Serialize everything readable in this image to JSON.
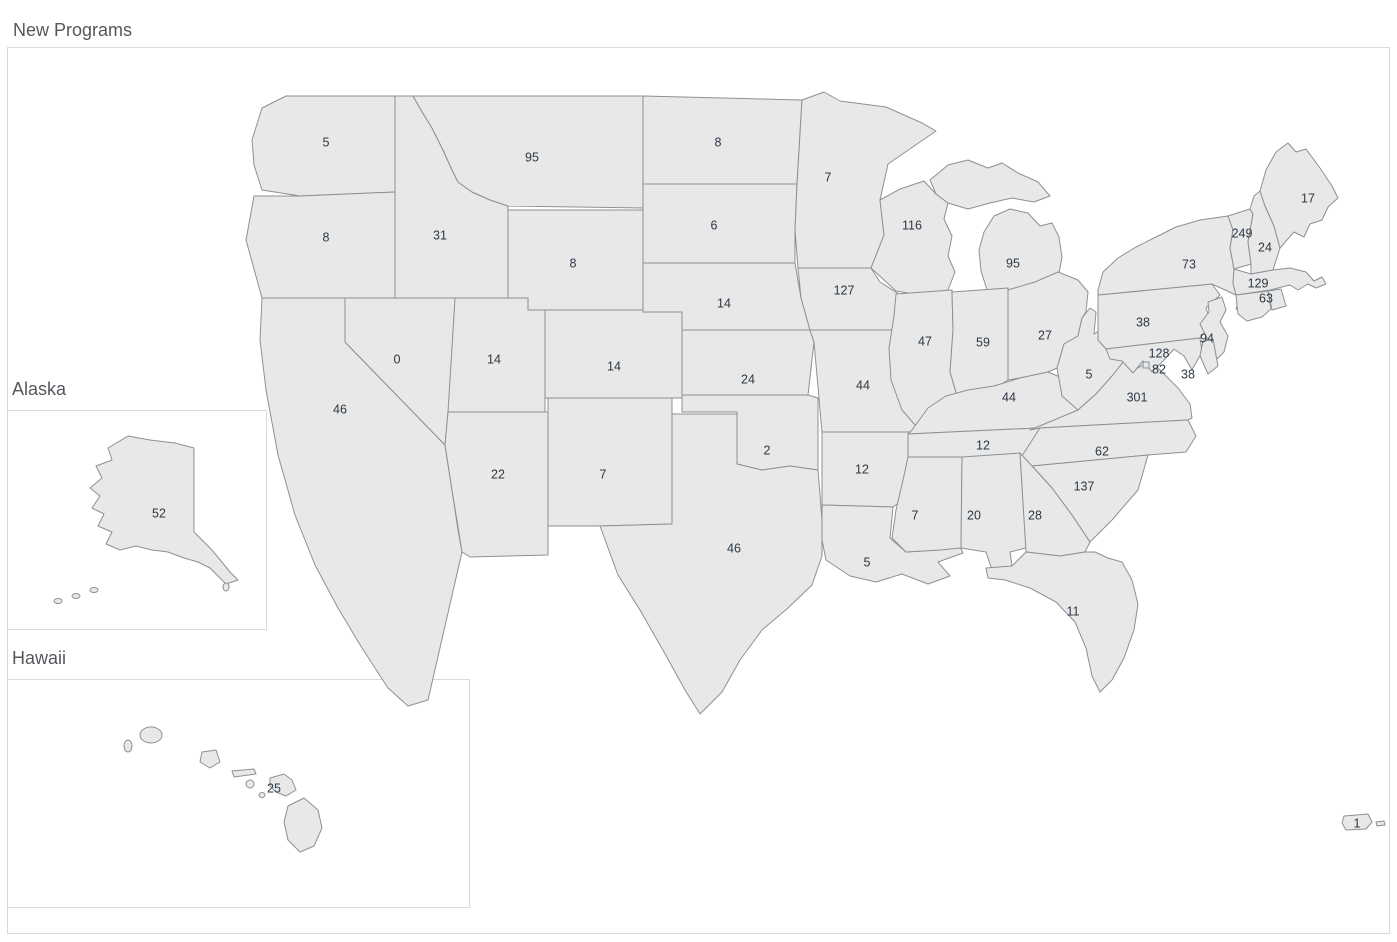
{
  "title": "New Programs",
  "insets": {
    "alaska_label": "Alaska",
    "hawaii_label": "Hawaii"
  },
  "chart_data": {
    "type": "choropleth",
    "title": "New Programs",
    "measure": "New Programs",
    "geography": "United States by state",
    "legend_visible": false,
    "color_scale": {
      "type": "sequential",
      "low_color": "#ddefe7",
      "high_color": "#2e527c",
      "domain": [
        0,
        301
      ]
    },
    "states": [
      {
        "id": "WA",
        "name": "Washington",
        "value": 5,
        "color": "#d4ebe2",
        "label": [
          326,
          142
        ]
      },
      {
        "id": "OR",
        "name": "Oregon",
        "value": 8,
        "color": "#cfe9df",
        "label": [
          326,
          237
        ]
      },
      {
        "id": "CA",
        "name": "California",
        "value": 46,
        "color": "#97cdca",
        "label": [
          340,
          409
        ]
      },
      {
        "id": "NV",
        "name": "Nevada",
        "value": 0,
        "color": "#ddefe7",
        "label": [
          397,
          359
        ]
      },
      {
        "id": "ID",
        "name": "Idaho",
        "value": 31,
        "color": "#aed9d0",
        "label": [
          440,
          235
        ]
      },
      {
        "id": "MT",
        "name": "Montana",
        "value": 95,
        "color": "#5faabf",
        "label": [
          532,
          157
        ]
      },
      {
        "id": "WY",
        "name": "Wyoming",
        "value": 8,
        "color": "#cfe9df",
        "label": [
          573,
          263
        ]
      },
      {
        "id": "UT",
        "name": "Utah",
        "value": 14,
        "color": "#c5e4d9",
        "label": [
          494,
          359
        ]
      },
      {
        "id": "CO",
        "name": "Colorado",
        "value": 14,
        "color": "#c5e4d9",
        "label": [
          614,
          366
        ]
      },
      {
        "id": "AZ",
        "name": "Arizona",
        "value": 22,
        "color": "#bbdfd5",
        "label": [
          498,
          474
        ]
      },
      {
        "id": "NM",
        "name": "New Mexico",
        "value": 7,
        "color": "#d1eae0",
        "label": [
          603,
          474
        ]
      },
      {
        "id": "ND",
        "name": "North Dakota",
        "value": 8,
        "color": "#cfe9df",
        "label": [
          718,
          142
        ]
      },
      {
        "id": "SD",
        "name": "South Dakota",
        "value": 6,
        "color": "#d2eae1",
        "label": [
          714,
          225
        ]
      },
      {
        "id": "NE",
        "name": "Nebraska",
        "value": 14,
        "color": "#c5e4d9",
        "label": [
          724,
          303
        ]
      },
      {
        "id": "KS",
        "name": "Kansas",
        "value": 24,
        "color": "#b8ded3",
        "label": [
          748,
          379
        ]
      },
      {
        "id": "OK",
        "name": "Oklahoma",
        "value": 2,
        "color": "#daeee5",
        "label": [
          767,
          450
        ]
      },
      {
        "id": "TX",
        "name": "Texas",
        "value": 46,
        "color": "#97cdca",
        "label": [
          734,
          548
        ]
      },
      {
        "id": "MN",
        "name": "Minnesota",
        "value": 7,
        "color": "#d1eae0",
        "label": [
          828,
          177
        ]
      },
      {
        "id": "IA",
        "name": "Iowa",
        "value": 127,
        "color": "#4793b5",
        "label": [
          844,
          290
        ]
      },
      {
        "id": "MO",
        "name": "Missouri",
        "value": 44,
        "color": "#9acecb",
        "label": [
          863,
          385
        ]
      },
      {
        "id": "AR",
        "name": "Arkansas",
        "value": 12,
        "color": "#c9e6db",
        "label": [
          862,
          469
        ]
      },
      {
        "id": "LA",
        "name": "Louisiana",
        "value": 5,
        "color": "#d4ebe2",
        "label": [
          867,
          562
        ]
      },
      {
        "id": "WI",
        "name": "Wisconsin",
        "value": 116,
        "color": "#4f9bb9",
        "label": [
          912,
          225
        ]
      },
      {
        "id": "IL",
        "name": "Illinois",
        "value": 47,
        "color": "#96ccca",
        "label": [
          925,
          341
        ]
      },
      {
        "id": "MI",
        "name": "Michigan",
        "value": 95,
        "color": "#5faabf",
        "label": [
          1013,
          263
        ]
      },
      {
        "id": "IN",
        "name": "Indiana",
        "value": 59,
        "color": "#85c3c7",
        "label": [
          983,
          342
        ]
      },
      {
        "id": "OH",
        "name": "Ohio",
        "value": 27,
        "color": "#b4dcd2",
        "label": [
          1045,
          335
        ]
      },
      {
        "id": "KY",
        "name": "Kentucky",
        "value": 44,
        "color": "#9acecb",
        "label": [
          1009,
          397
        ]
      },
      {
        "id": "TN",
        "name": "Tennessee",
        "value": 12,
        "color": "#c9e6db",
        "label": [
          983,
          445
        ]
      },
      {
        "id": "MS",
        "name": "Mississippi",
        "value": 7,
        "color": "#d1eae0",
        "label": [
          915,
          515
        ]
      },
      {
        "id": "AL",
        "name": "Alabama",
        "value": 20,
        "color": "#bde0d5",
        "label": [
          974,
          515
        ]
      },
      {
        "id": "GA",
        "name": "Georgia",
        "value": 28,
        "color": "#b3dbd1",
        "label": [
          1035,
          515
        ]
      },
      {
        "id": "FL",
        "name": "Florida",
        "value": 11,
        "color": "#cae6dc",
        "label": [
          1073,
          611
        ]
      },
      {
        "id": "SC",
        "name": "South Carolina",
        "value": 137,
        "color": "#428cb1",
        "label": [
          1084,
          486
        ]
      },
      {
        "id": "NC",
        "name": "North Carolina",
        "value": 62,
        "color": "#81c1c6",
        "label": [
          1102,
          451
        ]
      },
      {
        "id": "VA",
        "name": "Virginia",
        "value": 301,
        "color": "#2e527c",
        "label": [
          1137,
          397
        ]
      },
      {
        "id": "WV",
        "name": "West Virginia",
        "value": 5,
        "color": "#d4ebe2",
        "label": [
          1089,
          374
        ]
      },
      {
        "id": "PA",
        "name": "Pennsylvania",
        "value": 38,
        "color": "#a3d3cd",
        "label": [
          1143,
          322
        ]
      },
      {
        "id": "NY",
        "name": "New York",
        "value": 73,
        "color": "#73b9c3",
        "label": [
          1189,
          264
        ]
      },
      {
        "id": "VT",
        "name": "Vermont",
        "value": 249,
        "color": "#3c73a4",
        "label": [
          1242,
          233
        ]
      },
      {
        "id": "NH",
        "name": "New Hampshire",
        "value": 24,
        "color": "#b8ded3",
        "label": [
          1265,
          247
        ]
      },
      {
        "id": "ME",
        "name": "Maine",
        "value": 17,
        "color": "#c1e2d7",
        "label": [
          1308,
          198
        ]
      },
      {
        "id": "MA",
        "name": "Massachusetts",
        "value": 129,
        "color": "#4692b4",
        "label": [
          1258,
          283
        ]
      },
      {
        "id": "RI",
        "name": "Rhode Island",
        "value": 63,
        "color": "#80c1c5",
        "label": [
          1266,
          298
        ]
      },
      {
        "id": "CT",
        "name": "Connecticut",
        "value": null,
        "color": "#d1eae0",
        "label": null
      },
      {
        "id": "NJ",
        "name": "New Jersey",
        "value": 94,
        "color": "#60abbf",
        "label": [
          1207,
          338
        ]
      },
      {
        "id": "MD",
        "name": "Maryland",
        "value": 128,
        "color": "#4793b5",
        "label": [
          1159,
          353
        ]
      },
      {
        "id": "DC",
        "name": "District of Columbia",
        "value": 82,
        "color": "#69b2c1",
        "label": [
          1159,
          369
        ]
      },
      {
        "id": "DE",
        "name": "Delaware",
        "value": 38,
        "color": "#a3d3cd",
        "label": [
          1188,
          374
        ]
      },
      {
        "id": "AK",
        "name": "Alaska",
        "value": 52,
        "color": "#8fc9c8",
        "label": [
          159,
          513
        ]
      },
      {
        "id": "HI",
        "name": "Hawaii",
        "value": 25,
        "color": "#b7ddd3",
        "label": [
          274,
          788
        ]
      },
      {
        "id": "PR",
        "name": "Puerto Rico",
        "value": 1,
        "color": "#dceee6",
        "label": [
          1357,
          823
        ]
      },
      {
        "id": "VI",
        "name": "U.S. Virgin Islands",
        "value": null,
        "color": "#d4ebe2",
        "label": null
      }
    ]
  }
}
